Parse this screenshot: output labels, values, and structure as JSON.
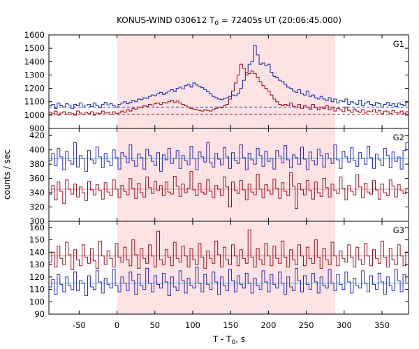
{
  "chart_data": {
    "type": "line",
    "title_main": "KONUS-WIND 030612 T",
    "title_sub": "0",
    "title_rest": " = 72405s UT (20:06:45.000)",
    "xlabel_main": "T - T",
    "xlabel_sub": "0",
    "xlabel_rest": ", s",
    "ylabel": "counts / sec",
    "xlim": [
      -90,
      385
    ],
    "xticks": [
      -50,
      0,
      50,
      100,
      150,
      200,
      250,
      300,
      350
    ],
    "shade": [
      0,
      288
    ],
    "colors": {
      "blue": "#2a2ac0",
      "red": "#a01020",
      "cyan": "#40b8e0",
      "pink": "#e89090",
      "shade": "#fde3e3"
    },
    "panels": [
      {
        "name": "G1",
        "ylim": [
          900,
          1600
        ],
        "yticks": [
          900,
          1000,
          1100,
          1200,
          1300,
          1400,
          1500,
          1600
        ],
        "bg_blue": 1060,
        "bg_red": 1005,
        "blue": [
          1070,
          1080,
          1050,
          1090,
          1070,
          1060,
          1085,
          1075,
          1050,
          1080,
          1070,
          1090,
          1060,
          1075,
          1080,
          1065,
          1090,
          1070,
          1055,
          1080,
          1095,
          1075,
          1085,
          1070,
          1060,
          1080,
          1090,
          1100,
          1085,
          1095,
          1110,
          1100,
          1120,
          1115,
          1130,
          1125,
          1140,
          1150,
          1145,
          1160,
          1170,
          1155,
          1165,
          1180,
          1190,
          1175,
          1200,
          1210,
          1195,
          1220,
          1230,
          1210,
          1240,
          1225,
          1215,
          1205,
          1190,
          1175,
          1160,
          1140,
          1130,
          1120,
          1115,
          1125,
          1130,
          1140,
          1150,
          1145,
          1160,
          1200,
          1260,
          1320,
          1380,
          1400,
          1520,
          1450,
          1380,
          1390,
          1370,
          1380,
          1320,
          1290,
          1280,
          1260,
          1250,
          1230,
          1210,
          1200,
          1180,
          1170,
          1190,
          1160,
          1150,
          1180,
          1140,
          1150,
          1130,
          1120,
          1140,
          1120,
          1110,
          1130,
          1100,
          1120,
          1090,
          1110,
          1100,
          1120,
          1080,
          1100,
          1090,
          1080,
          1110,
          1070,
          1090,
          1100,
          1080,
          1070,
          1095,
          1085,
          1060,
          1080,
          1095,
          1070,
          1085,
          1065,
          1090,
          1080,
          1070,
          1095
        ],
        "red": [
          1020,
          1010,
          1030,
          1000,
          1015,
          1025,
          1005,
          1020,
          1010,
          1000,
          1030,
          1015,
          1005,
          1020,
          1010,
          1025,
          1000,
          1015,
          1010,
          1030,
          1015,
          1020,
          1005,
          1025,
          1010,
          1015,
          1030,
          1020,
          1040,
          1030,
          1050,
          1045,
          1060,
          1055,
          1070,
          1065,
          1080,
          1075,
          1085,
          1090,
          1080,
          1095,
          1090,
          1100,
          1110,
          1095,
          1105,
          1090,
          1080,
          1070,
          1060,
          1050,
          1045,
          1040,
          1035,
          1030,
          1040,
          1035,
          1030,
          1040,
          1050,
          1060,
          1055,
          1070,
          1080,
          1120,
          1180,
          1240,
          1300,
          1380,
          1350,
          1300,
          1310,
          1330,
          1310,
          1280,
          1250,
          1220,
          1200,
          1180,
          1150,
          1120,
          1100,
          1080,
          1070,
          1080,
          1070,
          1090,
          1065,
          1060,
          1080,
          1050,
          1070,
          1060,
          1045,
          1080,
          1055,
          1040,
          1060,
          1050,
          1070,
          1040,
          1055,
          1030,
          1050,
          1040,
          1025,
          1060,
          1035,
          1020,
          1045,
          1030,
          1020,
          1040,
          1015,
          1030,
          1025,
          1040,
          1020,
          1035,
          1010,
          1030,
          1025,
          1010,
          1035,
          1020,
          1015,
          1030,
          1010,
          1025
        ]
      },
      {
        "name": "G2",
        "ylim": [
          300,
          430
        ],
        "yticks": [
          300,
          320,
          340,
          360,
          380,
          400,
          420
        ],
        "bg_blue": 388,
        "bg_red": 345,
        "blue": [
          385,
          395,
          378,
          402,
          390,
          372,
          398,
          385,
          380,
          410,
          376,
          392,
          388,
          370,
          399,
          386,
          381,
          404,
          390,
          375,
          395,
          384,
          378,
          400,
          389,
          373,
          396,
          391,
          382,
          407,
          385,
          377,
          394,
          389,
          373,
          401,
          392,
          384,
          378,
          396,
          370,
          393,
          386,
          402,
          381,
          388,
          399,
          374,
          392,
          385,
          379,
          405,
          388,
          372,
          397,
          390,
          383,
          410,
          382,
          376,
          395,
          387,
          379,
          403,
          390,
          374,
          396,
          385,
          381,
          407,
          389,
          372,
          395,
          386,
          380,
          402,
          392,
          377,
          398,
          384,
          388,
          373,
          399,
          391,
          382,
          406,
          386,
          375,
          393,
          389,
          380,
          404,
          387,
          372,
          397,
          385,
          379,
          401,
          392,
          376,
          395,
          388,
          381,
          407,
          386,
          374,
          398,
          390,
          383,
          403,
          385,
          377,
          396,
          388,
          380,
          405,
          389,
          374,
          394,
          386,
          378,
          402,
          392,
          375,
          397,
          384,
          390,
          373,
          399,
          410
        ],
        "red": [
          338,
          350,
          330,
          355,
          342,
          325,
          358,
          345,
          338,
          352,
          334,
          348,
          340,
          329,
          356,
          344,
          337,
          351,
          343,
          331,
          354,
          341,
          336,
          358,
          345,
          333,
          350,
          342,
          337,
          360,
          346,
          332,
          353,
          340,
          334,
          362,
          347,
          339,
          356,
          343,
          350,
          336,
          355,
          341,
          338,
          363,
          349,
          335,
          352,
          340,
          346,
          370,
          344,
          336,
          353,
          341,
          338,
          358,
          342,
          333,
          350,
          345,
          336,
          362,
          348,
          320,
          355,
          343,
          339,
          357,
          344,
          330,
          352,
          341,
          337,
          366,
          345,
          333,
          351,
          343,
          338,
          359,
          346,
          332,
          354,
          342,
          336,
          368,
          349,
          318,
          353,
          344,
          337,
          357,
          343,
          331,
          355,
          340,
          335,
          360,
          347,
          334,
          352,
          343,
          339,
          362,
          346,
          330,
          350,
          342,
          337,
          365,
          348,
          333,
          353,
          341,
          338,
          357,
          344,
          331,
          352,
          340,
          336,
          358,
          349,
          334,
          351,
          343,
          339,
          346
        ]
      },
      {
        "name": "G3",
        "ylim": [
          90,
          165
        ],
        "yticks": [
          90,
          100,
          110,
          120,
          130,
          140,
          150,
          160
        ],
        "bg_blue": 115,
        "bg_red": 137,
        "blue": [
          112,
          118,
          106,
          122,
          114,
          108,
          120,
          113,
          110,
          124,
          109,
          117,
          115,
          105,
          121,
          112,
          110,
          125,
          116,
          107,
          119,
          114,
          111,
          126,
          113,
          108,
          120,
          115,
          109,
          124,
          117,
          106,
          122,
          113,
          110,
          127,
          115,
          108,
          121,
          114,
          111,
          123,
          116,
          105,
          120,
          112,
          109,
          125,
          117,
          107,
          119,
          113,
          111,
          128,
          115,
          108,
          122,
          114,
          110,
          124,
          116,
          106,
          120,
          113,
          109,
          126,
          117,
          108,
          121,
          114,
          111,
          123,
          115,
          107,
          119,
          113,
          110,
          125,
          116,
          108,
          122,
          114,
          111,
          124,
          115,
          106,
          120,
          112,
          109,
          127,
          117,
          108,
          121,
          114,
          110,
          123,
          116,
          107,
          120,
          113,
          111,
          126,
          115,
          109,
          122,
          114,
          110,
          124,
          116,
          107,
          119,
          113,
          111,
          125,
          115,
          108,
          121,
          114,
          110,
          123,
          116,
          106,
          120,
          113,
          109,
          126,
          117,
          108,
          122,
          115
        ],
        "red": [
          132,
          140,
          128,
          145,
          135,
          130,
          148,
          138,
          126,
          142,
          134,
          129,
          146,
          136,
          131,
          143,
          133,
          127,
          149,
          137,
          130,
          141,
          135,
          128,
          147,
          136,
          132,
          144,
          134,
          129,
          150,
          138,
          127,
          143,
          135,
          131,
          146,
          137,
          128,
          157,
          134,
          130,
          142,
          136,
          129,
          148,
          135,
          132,
          145,
          137,
          128,
          143,
          134,
          130,
          147,
          136,
          127,
          141,
          135,
          131,
          149,
          138,
          128,
          144,
          134,
          130,
          146,
          137,
          129,
          142,
          135,
          131,
          158,
          136,
          128,
          143,
          134,
          130,
          147,
          137,
          129,
          145,
          135,
          131,
          149,
          136,
          128,
          142,
          134,
          130,
          146,
          137,
          129,
          144,
          135,
          131,
          150,
          136,
          127,
          143,
          134,
          130,
          148,
          137,
          129,
          141,
          135,
          132,
          146,
          136,
          128,
          144,
          134,
          130,
          147,
          137,
          129,
          142,
          135,
          131,
          149,
          136,
          128,
          143,
          134,
          130,
          146,
          137,
          129,
          140
        ]
      }
    ]
  }
}
